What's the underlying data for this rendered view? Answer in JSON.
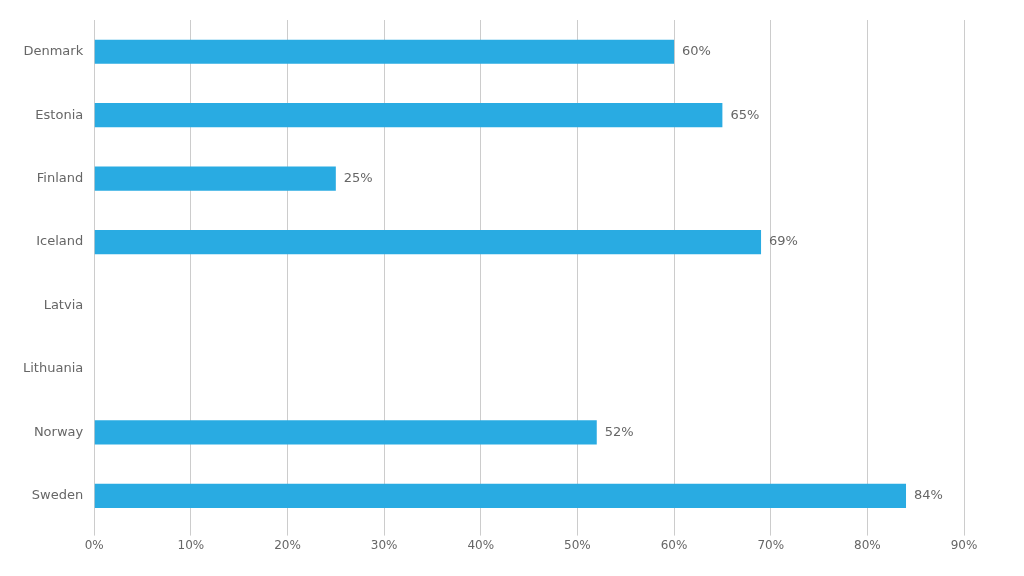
{
  "chart_data": {
    "type": "bar",
    "orientation": "horizontal",
    "categories": [
      "Denmark",
      "Estonia",
      "Finland",
      "Iceland",
      "Latvia",
      "Lithuania",
      "Norway",
      "Sweden"
    ],
    "values": [
      60,
      65,
      25,
      69,
      0,
      0,
      52,
      84
    ],
    "value_labels": [
      "60%",
      "65%",
      "25%",
      "69%",
      null,
      null,
      "52%",
      "84%"
    ],
    "data_labels": true,
    "color": "#29ABE2",
    "xlim": [
      0,
      90
    ],
    "xticks": [
      {
        "value": 0,
        "label": "0%"
      },
      {
        "value": 10,
        "label": "10%"
      },
      {
        "value": 20,
        "label": "20%"
      },
      {
        "value": 30,
        "label": "30%"
      },
      {
        "value": 40,
        "label": "40%"
      },
      {
        "value": 50,
        "label": "50%"
      },
      {
        "value": 60,
        "label": "60%"
      },
      {
        "value": 70,
        "label": "70%"
      },
      {
        "value": 80,
        "label": "80%"
      },
      {
        "value": 90,
        "label": "90%"
      }
    ],
    "grid": true
  }
}
